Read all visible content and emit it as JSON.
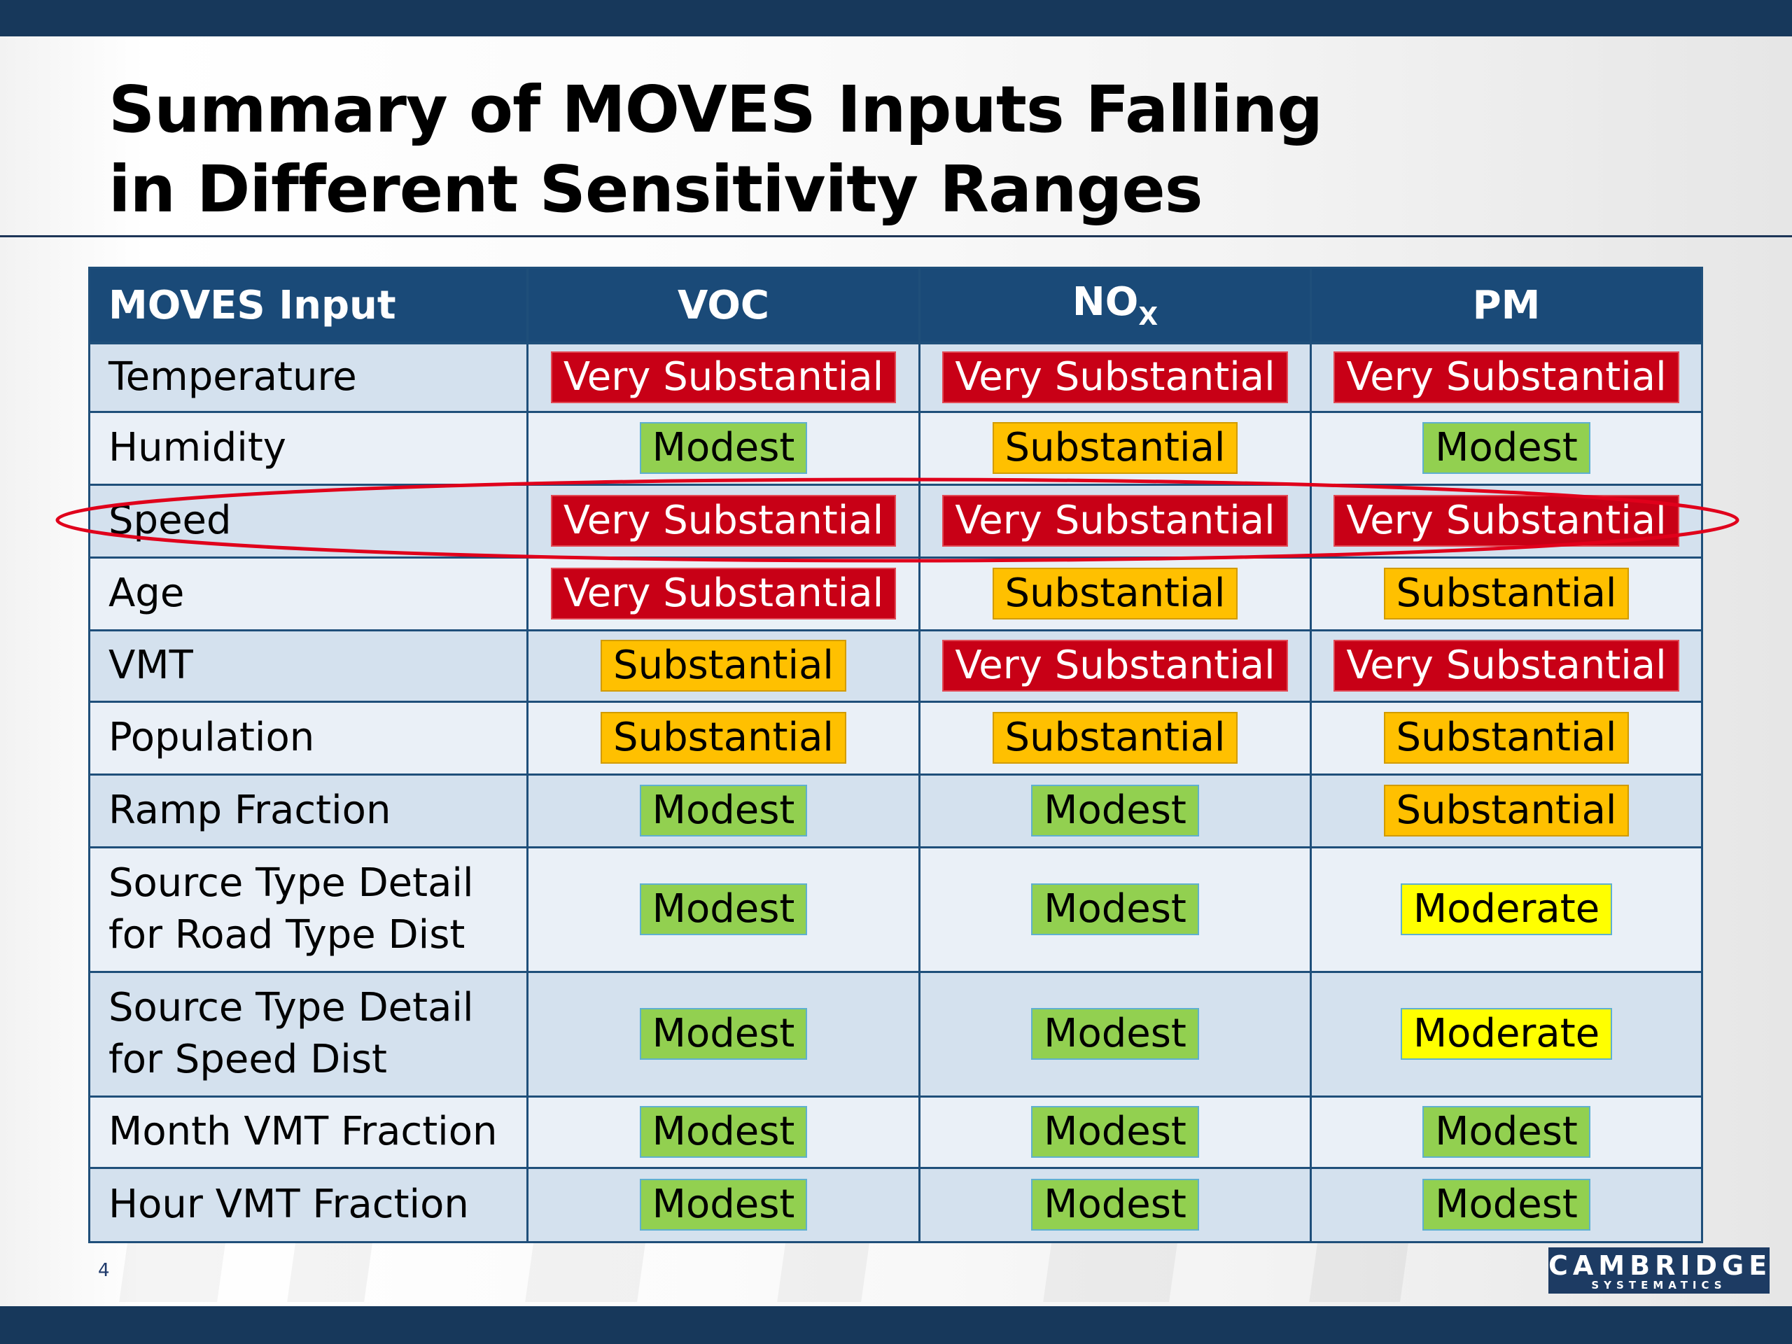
{
  "slide": {
    "title_line1": "Summary of MOVES Inputs Falling",
    "title_line2": "in Different Sensitivity Ranges",
    "page_number": "4"
  },
  "table": {
    "headers": {
      "input": "MOVES Input",
      "voc": "VOC",
      "nox_base": "NO",
      "nox_sub": "X",
      "pm": "PM"
    },
    "rows": [
      {
        "label_line1": "Temperature",
        "label_line2": "",
        "voc": "Very Substantial",
        "nox": "Very Substantial",
        "pm": "Very Substantial"
      },
      {
        "label_line1": "Humidity",
        "label_line2": "",
        "voc": "Modest",
        "nox": "Substantial",
        "pm": "Modest"
      },
      {
        "label_line1": "Speed",
        "label_line2": "",
        "voc": "Very Substantial",
        "nox": "Very Substantial",
        "pm": "Very Substantial"
      },
      {
        "label_line1": "Age",
        "label_line2": "",
        "voc": "Very Substantial",
        "nox": "Substantial",
        "pm": "Substantial"
      },
      {
        "label_line1": "VMT",
        "label_line2": "",
        "voc": "Substantial",
        "nox": "Very Substantial",
        "pm": "Very Substantial"
      },
      {
        "label_line1": "Population",
        "label_line2": "",
        "voc": "Substantial",
        "nox": "Substantial",
        "pm": "Substantial"
      },
      {
        "label_line1": "Ramp Fraction",
        "label_line2": "",
        "voc": "Modest",
        "nox": "Modest",
        "pm": "Substantial"
      },
      {
        "label_line1": "Source Type Detail",
        "label_line2": "for Road Type Dist",
        "voc": "Modest",
        "nox": "Modest",
        "pm": "Moderate"
      },
      {
        "label_line1": "Source Type Detail",
        "label_line2": "for Speed Dist",
        "voc": "Modest",
        "nox": "Modest",
        "pm": "Moderate"
      },
      {
        "label_line1": "Month VMT Fraction",
        "label_line2": "",
        "voc": "Modest",
        "nox": "Modest",
        "pm": "Modest"
      },
      {
        "label_line1": "Hour VMT Fraction",
        "label_line2": "",
        "voc": "Modest",
        "nox": "Modest",
        "pm": "Modest"
      }
    ],
    "highlighted_row": "Speed"
  },
  "colors": {
    "very_substantial": "#c80016",
    "substantial": "#ffc000",
    "modest": "#92d050",
    "moderate": "#ffff00",
    "header": "#1a4a78",
    "highlight_oval": "#e0001b"
  },
  "logo": {
    "name": "CAMBRIDGE",
    "tagline": "SYSTEMATICS"
  }
}
